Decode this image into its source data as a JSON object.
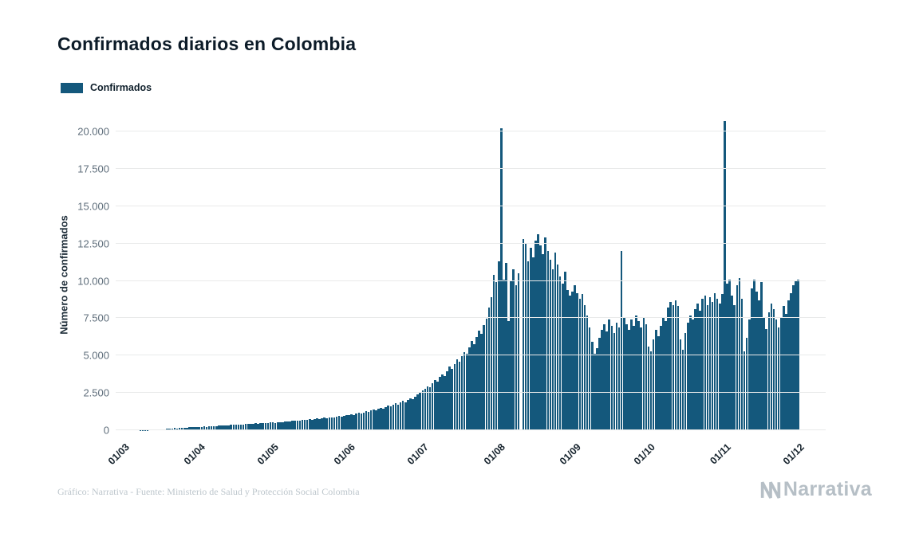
{
  "header": {
    "title": "Confirmados diarios en Colombia"
  },
  "legend": {
    "label": "Confirmados",
    "color": "#14587c"
  },
  "footer": {
    "credit": "Gráfico: Narrativa - Fuente: Ministerio de Salud y Protección Social Colombia",
    "brand": "Narrativa"
  },
  "chart_data": {
    "type": "bar",
    "title": "Confirmados diarios en Colombia",
    "xlabel": "",
    "ylabel": "Número de confirmados",
    "series_name": "Confirmados",
    "bar_color": "#14587c",
    "grid": true,
    "legend_position": "top-left",
    "ylim": [
      0,
      20800
    ],
    "start_date": "2020-03-01",
    "x_tick_labels": [
      "01/03",
      "01/04",
      "01/05",
      "01/06",
      "01/07",
      "01/08",
      "01/09",
      "01/10",
      "01/11",
      "01/12"
    ],
    "x_tick_indices": [
      0,
      31,
      61,
      92,
      122,
      153,
      184,
      214,
      245,
      275
    ],
    "y_tick_labels": [
      "0",
      "2.500",
      "5.000",
      "7.500",
      "10.000",
      "12.500",
      "15.000",
      "17.500",
      "20.000"
    ],
    "y_tick_values": [
      0,
      2500,
      5000,
      7500,
      10000,
      12500,
      15000,
      17500,
      20000
    ],
    "values": [
      0,
      0,
      0,
      0,
      0,
      1,
      3,
      6,
      9,
      15,
      22,
      30,
      34,
      45,
      42,
      57,
      75,
      68,
      93,
      105,
      120,
      135,
      128,
      150,
      165,
      158,
      180,
      195,
      188,
      210,
      220,
      215,
      230,
      245,
      238,
      260,
      275,
      268,
      290,
      305,
      298,
      320,
      335,
      328,
      350,
      365,
      358,
      380,
      395,
      388,
      410,
      425,
      418,
      440,
      455,
      448,
      470,
      462,
      485,
      498,
      510,
      520,
      505,
      540,
      560,
      545,
      580,
      600,
      585,
      620,
      645,
      630,
      665,
      690,
      672,
      710,
      735,
      718,
      755,
      780,
      765,
      800,
      830,
      812,
      850,
      880,
      860,
      900,
      935,
      915,
      960,
      990,
      1010,
      1060,
      1030,
      1100,
      1150,
      1120,
      1200,
      1260,
      1220,
      1310,
      1380,
      1340,
      1430,
      1500,
      1460,
      1560,
      1640,
      1590,
      1700,
      1790,
      1730,
      1850,
      1950,
      1890,
      2050,
      2150,
      2080,
      2250,
      2400,
      2500,
      2650,
      2800,
      2950,
      2870,
      3150,
      3350,
      3250,
      3550,
      3750,
      3650,
      3950,
      4250,
      4100,
      4450,
      4750,
      4600,
      4950,
      5250,
      5100,
      5550,
      5950,
      5750,
      6250,
      6650,
      6450,
      7050,
      7450,
      8200,
      8900,
      10400,
      9900,
      11300,
      20200,
      10100,
      11200,
      7300,
      10000,
      10800,
      9700,
      10500,
      0,
      12800,
      12500,
      11300,
      12200,
      11600,
      12700,
      13100,
      12400,
      11800,
      12900,
      12000,
      11400,
      10800,
      11900,
      11100,
      10300,
      9800,
      10600,
      9400,
      9000,
      9300,
      9700,
      9200,
      8800,
      9100,
      8400,
      7700,
      6900,
      5900,
      5100,
      5500,
      6200,
      6700,
      7100,
      6600,
      7400,
      7000,
      6500,
      7200,
      6900,
      12000,
      7600,
      7100,
      6700,
      7400,
      7000,
      7700,
      7300,
      6900,
      7500,
      7100,
      5600,
      5300,
      6100,
      6700,
      6300,
      7000,
      7600,
      7300,
      8200,
      8600,
      8400,
      8700,
      8300,
      6100,
      5400,
      6500,
      7200,
      7700,
      7400,
      8100,
      8500,
      8000,
      8800,
      9000,
      8400,
      8900,
      8600,
      9200,
      8800,
      8500,
      9100,
      20700,
      9800,
      10100,
      9000,
      8400,
      9700,
      10200,
      8800,
      5300,
      6200,
      7400,
      9500,
      10100,
      9300,
      8700,
      9900,
      7500,
      6800,
      7900,
      8500,
      8100,
      7400,
      6900,
      7600,
      8300,
      7800,
      8700,
      9200,
      9700,
      10000,
      10100
    ]
  }
}
